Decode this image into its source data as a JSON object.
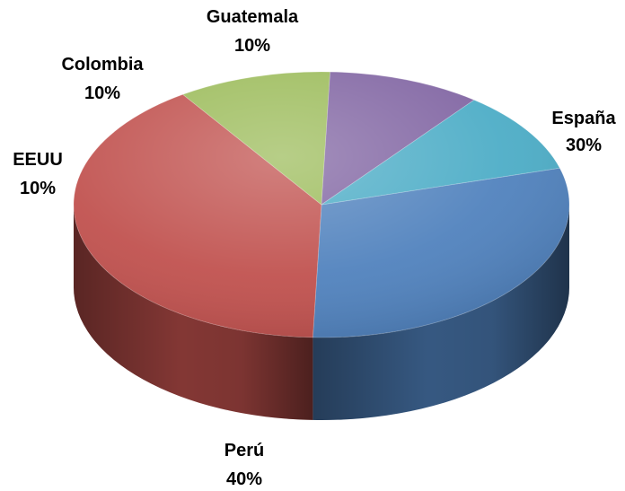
{
  "chart_data": {
    "type": "pie",
    "style": "3d",
    "legend": "none",
    "slices": [
      {
        "label": "España",
        "value": 30,
        "value_label": "30%",
        "color": "#4f81bd"
      },
      {
        "label": "Perú",
        "value": 40,
        "value_label": "40%",
        "color": "#c0504d"
      },
      {
        "label": "EEUU",
        "value": 10,
        "value_label": "10%",
        "color": "#9bbb59"
      },
      {
        "label": "Colombia",
        "value": 10,
        "value_label": "10%",
        "color": "#8064a2"
      },
      {
        "label": "Guatemala",
        "value": 10,
        "value_label": "10%",
        "color": "#4bacc6"
      }
    ]
  }
}
